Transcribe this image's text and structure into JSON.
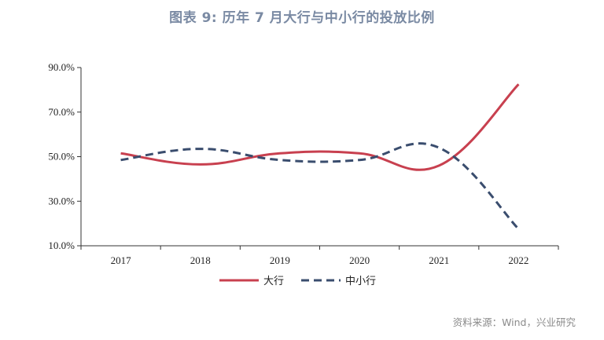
{
  "title": "图表 9:  历年 7 月大行与中小行的投放比例",
  "source": "资料来源：Wind，兴业研究",
  "colors": {
    "large": "#c8404f",
    "small": "#3a4d6e",
    "axis": "#333333"
  },
  "chart_data": {
    "type": "line",
    "categories": [
      "2017",
      "2018",
      "2019",
      "2020",
      "2021",
      "2022"
    ],
    "ylim": [
      10,
      90
    ],
    "yticks": [
      10,
      30,
      50,
      70,
      90
    ],
    "ytick_labels": [
      "10.0%",
      "30.0%",
      "50.0%",
      "70.0%",
      "90.0%"
    ],
    "series": [
      {
        "name": "大行",
        "values": [
          51.5,
          46.5,
          51.5,
          51.5,
          46,
          82.5
        ],
        "style": "solid"
      },
      {
        "name": "中小行",
        "values": [
          48.5,
          53.5,
          48.5,
          48.5,
          54,
          17.5
        ],
        "style": "dashed"
      }
    ],
    "legend": "bottom-center",
    "grid": false
  }
}
